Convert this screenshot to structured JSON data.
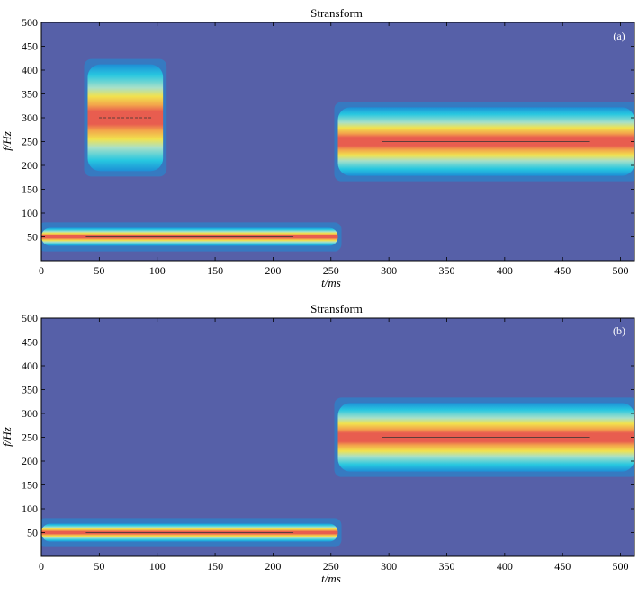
{
  "colors": {
    "background": "#5660a8",
    "light_blue": "#1d8fd6",
    "cyan": "#27c7e0",
    "pale_cyan": "#a8e0c8",
    "yellow": "#f1e24e",
    "orange": "#f3a64b",
    "red": "#e85d4f",
    "frame": "#000000"
  },
  "chart_data": [
    {
      "type": "heatmap",
      "title": "Stransform",
      "panel_label": "(a)",
      "xlabel": "t/ms",
      "ylabel": "f/Hz",
      "xlim": [
        0,
        512
      ],
      "ylim": [
        0,
        500
      ],
      "xticks": [
        0,
        50,
        100,
        150,
        200,
        250,
        300,
        350,
        400,
        450,
        500
      ],
      "yticks": [
        50,
        100,
        150,
        200,
        250,
        300,
        350,
        400,
        450,
        500
      ],
      "components": [
        {
          "t_start": 0,
          "t_end": 256,
          "f_center": 50,
          "f_half_width": 12,
          "level": 1.0
        },
        {
          "t_start": 40,
          "t_end": 105,
          "f_center": 300,
          "f_half_width": 70,
          "level": 0.9
        },
        {
          "t_start": 256,
          "t_end": 512,
          "f_center": 250,
          "f_half_width": 45,
          "level": 1.0
        }
      ]
    },
    {
      "type": "heatmap",
      "title": "Stransform",
      "panel_label": "(b)",
      "xlabel": "t/ms",
      "ylabel": "f/Hz",
      "xlim": [
        0,
        512
      ],
      "ylim": [
        0,
        500
      ],
      "xticks": [
        0,
        50,
        100,
        150,
        200,
        250,
        300,
        350,
        400,
        450,
        500
      ],
      "yticks": [
        50,
        100,
        150,
        200,
        250,
        300,
        350,
        400,
        450,
        500
      ],
      "components": [
        {
          "t_start": 0,
          "t_end": 256,
          "f_center": 50,
          "f_half_width": 12,
          "level": 1.0
        },
        {
          "t_start": 256,
          "t_end": 512,
          "f_center": 250,
          "f_half_width": 45,
          "level": 1.0
        }
      ]
    }
  ]
}
